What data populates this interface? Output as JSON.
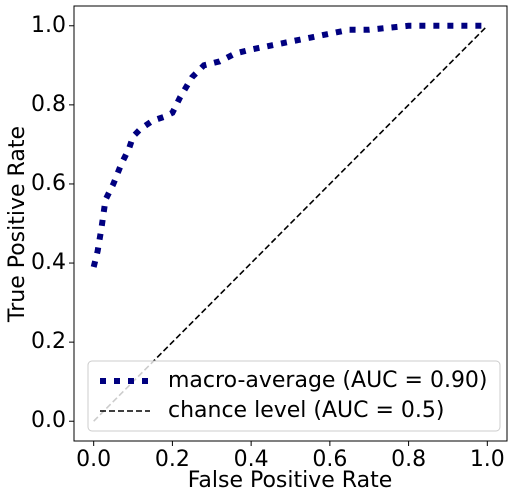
{
  "chart_data": {
    "type": "line",
    "x_label": "False Positive Rate",
    "y_label": "True Positive Rate",
    "xlim": [
      -0.05,
      1.05
    ],
    "ylim": [
      -0.05,
      1.05
    ],
    "xticks": [
      {
        "value": 0,
        "label": "0.0"
      },
      {
        "value": 0.2,
        "label": "0.2"
      },
      {
        "value": 0.4,
        "label": "0.4"
      },
      {
        "value": 0.6,
        "label": "0.6"
      },
      {
        "value": 0.8,
        "label": "0.8"
      },
      {
        "value": 1,
        "label": "1.0"
      }
    ],
    "yticks": [
      {
        "value": 0,
        "label": "0.0"
      },
      {
        "value": 0.2,
        "label": "0.2"
      },
      {
        "value": 0.4,
        "label": "0.4"
      },
      {
        "value": 0.6,
        "label": "0.6"
      },
      {
        "value": 0.8,
        "label": "0.8"
      },
      {
        "value": 1,
        "label": "1.0"
      }
    ],
    "legend": "lower right",
    "series": [
      {
        "name": "macro-average (AUC = 0.90)",
        "color": "#000080",
        "linestyle": "dotted",
        "x": [
          0,
          0.01,
          0.02,
          0.03,
          0.05,
          0.07,
          0.09,
          0.1,
          0.12,
          0.15,
          0.18,
          0.2,
          0.22,
          0.25,
          0.28,
          0.32,
          0.36,
          0.4,
          0.45,
          0.5,
          0.55,
          0.6,
          0.65,
          0.7,
          0.8,
          0.9,
          1.0
        ],
        "values": [
          0.39,
          0.43,
          0.49,
          0.56,
          0.6,
          0.65,
          0.69,
          0.72,
          0.74,
          0.76,
          0.77,
          0.78,
          0.82,
          0.87,
          0.9,
          0.91,
          0.93,
          0.94,
          0.95,
          0.96,
          0.97,
          0.98,
          0.99,
          0.99,
          1.0,
          1.0,
          1.0
        ]
      },
      {
        "name": "chance level (AUC = 0.5)",
        "color": "#000000",
        "linestyle": "dashed",
        "x": [
          0,
          1
        ],
        "values": [
          0,
          1
        ]
      }
    ]
  }
}
